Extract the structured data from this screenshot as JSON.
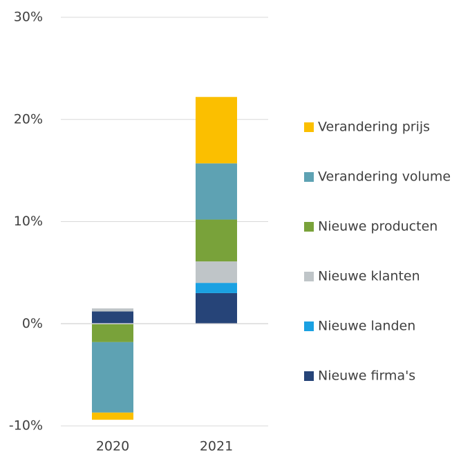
{
  "chart_data": {
    "type": "stacked_bar",
    "categories": [
      "2020",
      "2021"
    ],
    "series": [
      {
        "name": "Nieuwe firma's",
        "color": "#264478",
        "values": [
          1.2,
          3.0
        ]
      },
      {
        "name": "Nieuwe landen",
        "color": "#1ba1e2",
        "values": [
          0,
          1.0
        ]
      },
      {
        "name": "Nieuwe klanten",
        "color": "#bfc5c8",
        "values": [
          0.3,
          2.1
        ]
      },
      {
        "name": "Nieuwe producten",
        "color": "#79a23a",
        "values": [
          -1.8,
          4.1
        ]
      },
      {
        "name": "Verandering volume",
        "color": "#5ea2b3",
        "values": [
          -6.9,
          5.5
        ]
      },
      {
        "name": "Verandering prijs",
        "color": "#fbbf00",
        "values": [
          -0.7,
          6.5
        ]
      }
    ],
    "ylim": [
      -10,
      30
    ],
    "yticks": [
      {
        "value": -10,
        "label": "-10%"
      },
      {
        "value": 0,
        "label": "0%"
      },
      {
        "value": 10,
        "label": "10%"
      },
      {
        "value": 20,
        "label": "20%"
      },
      {
        "value": 30,
        "label": "30%"
      }
    ],
    "grid": true,
    "legend": "right"
  }
}
